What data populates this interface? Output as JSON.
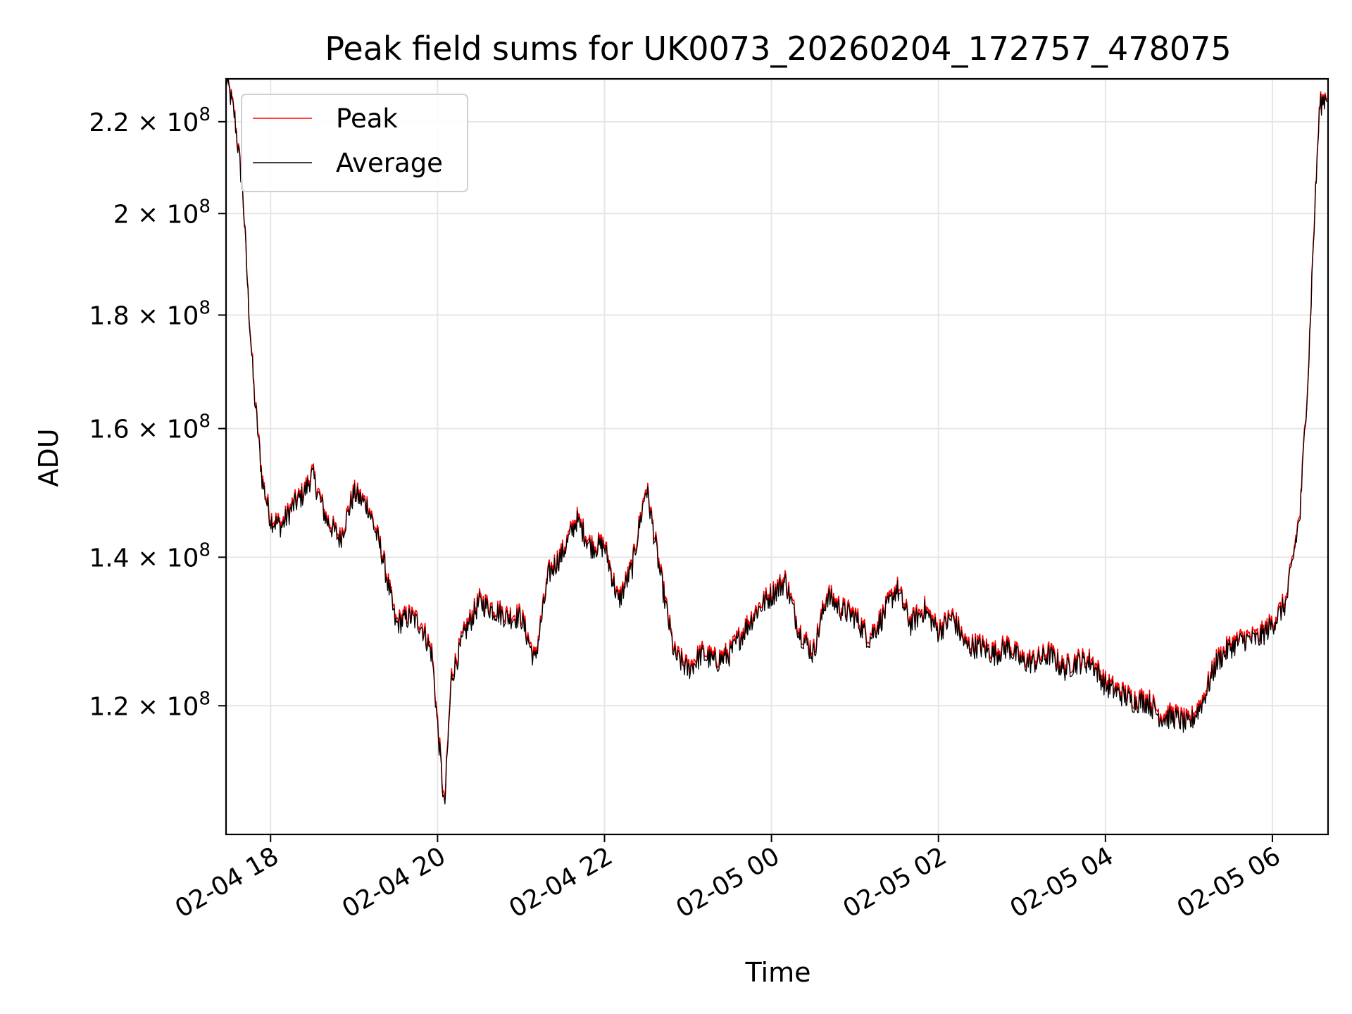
{
  "chart_data": {
    "type": "line",
    "title": "Peak field sums for UK0073_20260204_172757_478075",
    "xlabel": "Time",
    "ylabel": "ADU",
    "y_scale": "log",
    "grid": true,
    "legend_position": "top-left",
    "xlim": [
      "2026-02-04 17:28",
      "2026-02-05 06:40"
    ],
    "ylim": [
      105000000,
      230000000
    ],
    "x_ticks": [
      {
        "value": "2026-02-04 18:00",
        "label": "02-04 18"
      },
      {
        "value": "2026-02-04 20:00",
        "label": "02-04 20"
      },
      {
        "value": "2026-02-04 22:00",
        "label": "02-04 22"
      },
      {
        "value": "2026-02-05 00:00",
        "label": "02-05 00"
      },
      {
        "value": "2026-02-05 02:00",
        "label": "02-05 02"
      },
      {
        "value": "2026-02-05 04:00",
        "label": "02-05 04"
      },
      {
        "value": "2026-02-05 06:00",
        "label": "02-05 06"
      }
    ],
    "y_ticks": [
      {
        "value": 120000000,
        "mantissa": "1.2",
        "exp": "8"
      },
      {
        "value": 140000000,
        "mantissa": "1.4",
        "exp": "8"
      },
      {
        "value": 160000000,
        "mantissa": "1.6",
        "exp": "8"
      },
      {
        "value": 180000000,
        "mantissa": "1.8",
        "exp": "8"
      },
      {
        "value": 200000000,
        "mantissa": "2",
        "exp": "8"
      },
      {
        "value": 220000000,
        "mantissa": "2.2",
        "exp": "8"
      }
    ],
    "tick_multiplier": "× 10",
    "series": [
      {
        "name": "Peak",
        "color": "#ff0000",
        "x": [
          "2026-02-04 17:28",
          "2026-02-04 17:34",
          "2026-02-04 17:40",
          "2026-02-04 17:44",
          "2026-02-04 17:48",
          "2026-02-04 17:54",
          "2026-02-04 18:00",
          "2026-02-04 18:08",
          "2026-02-04 18:16",
          "2026-02-04 18:24",
          "2026-02-04 18:30",
          "2026-02-04 18:40",
          "2026-02-04 18:50",
          "2026-02-04 19:00",
          "2026-02-04 19:10",
          "2026-02-04 19:20",
          "2026-02-04 19:30",
          "2026-02-04 19:40",
          "2026-02-04 19:48",
          "2026-02-04 19:56",
          "2026-02-04 20:00",
          "2026-02-04 20:05",
          "2026-02-04 20:10",
          "2026-02-04 20:20",
          "2026-02-04 20:30",
          "2026-02-04 20:40",
          "2026-02-04 20:50",
          "2026-02-04 21:00",
          "2026-02-04 21:10",
          "2026-02-04 21:20",
          "2026-02-04 21:30",
          "2026-02-04 21:40",
          "2026-02-04 21:50",
          "2026-02-04 22:00",
          "2026-02-04 22:10",
          "2026-02-04 22:20",
          "2026-02-04 22:30",
          "2026-02-04 22:40",
          "2026-02-04 22:50",
          "2026-02-04 23:00",
          "2026-02-04 23:10",
          "2026-02-04 23:20",
          "2026-02-04 23:30",
          "2026-02-04 23:40",
          "2026-02-04 23:50",
          "2026-02-05 00:00",
          "2026-02-05 00:10",
          "2026-02-05 00:20",
          "2026-02-05 00:30",
          "2026-02-05 00:40",
          "2026-02-05 00:50",
          "2026-02-05 01:00",
          "2026-02-05 01:10",
          "2026-02-05 01:20",
          "2026-02-05 01:30",
          "2026-02-05 01:40",
          "2026-02-05 01:50",
          "2026-02-05 02:00",
          "2026-02-05 02:10",
          "2026-02-05 02:20",
          "2026-02-05 02:30",
          "2026-02-05 02:40",
          "2026-02-05 02:50",
          "2026-02-05 03:00",
          "2026-02-05 03:10",
          "2026-02-05 03:20",
          "2026-02-05 03:30",
          "2026-02-05 03:40",
          "2026-02-05 03:50",
          "2026-02-05 04:00",
          "2026-02-05 04:10",
          "2026-02-05 04:20",
          "2026-02-05 04:30",
          "2026-02-05 04:40",
          "2026-02-05 04:50",
          "2026-02-05 05:00",
          "2026-02-05 05:10",
          "2026-02-05 05:20",
          "2026-02-05 05:30",
          "2026-02-05 05:40",
          "2026-02-05 05:50",
          "2026-02-05 06:00",
          "2026-02-05 06:10",
          "2026-02-05 06:20",
          "2026-02-05 06:26",
          "2026-02-05 06:30",
          "2026-02-05 06:34",
          "2026-02-05 06:40"
        ],
        "y": [
          231000000,
          222000000,
          205000000,
          183000000,
          167000000,
          152000000,
          146000000,
          145000000,
          148000000,
          150000000,
          153000000,
          146000000,
          143000000,
          150000000,
          148000000,
          141000000,
          131000000,
          132000000,
          131000000,
          127000000,
          118000000,
          108000000,
          124000000,
          130000000,
          134000000,
          133000000,
          132000000,
          132000000,
          126000000,
          138000000,
          141000000,
          146000000,
          142000000,
          142000000,
          134000000,
          139000000,
          151000000,
          138000000,
          127000000,
          125000000,
          127000000,
          126000000,
          127000000,
          130000000,
          133000000,
          135000000,
          137000000,
          130000000,
          127000000,
          135000000,
          133000000,
          132000000,
          129000000,
          132000000,
          136000000,
          131000000,
          133000000,
          130000000,
          132000000,
          128000000,
          128000000,
          127000000,
          128000000,
          126000000,
          126000000,
          127000000,
          125000000,
          126000000,
          126000000,
          123000000,
          122000000,
          121000000,
          121000000,
          119000000,
          119000000,
          118000000,
          121000000,
          126000000,
          128000000,
          129000000,
          129000000,
          131000000,
          134000000,
          147000000,
          171000000,
          198000000,
          224000000,
          227000000
        ]
      },
      {
        "name": "Average",
        "color": "#000000",
        "x": [
          "2026-02-04 17:28",
          "2026-02-04 17:34",
          "2026-02-04 17:40",
          "2026-02-04 17:44",
          "2026-02-04 17:48",
          "2026-02-04 17:54",
          "2026-02-04 18:00",
          "2026-02-04 18:08",
          "2026-02-04 18:16",
          "2026-02-04 18:24",
          "2026-02-04 18:30",
          "2026-02-04 18:40",
          "2026-02-04 18:50",
          "2026-02-04 19:00",
          "2026-02-04 19:10",
          "2026-02-04 19:20",
          "2026-02-04 19:30",
          "2026-02-04 19:40",
          "2026-02-04 19:48",
          "2026-02-04 19:56",
          "2026-02-04 20:00",
          "2026-02-04 20:05",
          "2026-02-04 20:10",
          "2026-02-04 20:20",
          "2026-02-04 20:30",
          "2026-02-04 20:40",
          "2026-02-04 20:50",
          "2026-02-04 21:00",
          "2026-02-04 21:10",
          "2026-02-04 21:20",
          "2026-02-04 21:30",
          "2026-02-04 21:40",
          "2026-02-04 21:50",
          "2026-02-04 22:00",
          "2026-02-04 22:10",
          "2026-02-04 22:20",
          "2026-02-04 22:30",
          "2026-02-04 22:40",
          "2026-02-04 22:50",
          "2026-02-04 23:00",
          "2026-02-04 23:10",
          "2026-02-04 23:20",
          "2026-02-04 23:30",
          "2026-02-04 23:40",
          "2026-02-04 23:50",
          "2026-02-05 00:00",
          "2026-02-05 00:10",
          "2026-02-05 00:20",
          "2026-02-05 00:30",
          "2026-02-05 00:40",
          "2026-02-05 00:50",
          "2026-02-05 01:00",
          "2026-02-05 01:10",
          "2026-02-05 01:20",
          "2026-02-05 01:30",
          "2026-02-05 01:40",
          "2026-02-05 01:50",
          "2026-02-05 02:00",
          "2026-02-05 02:10",
          "2026-02-05 02:20",
          "2026-02-05 02:30",
          "2026-02-05 02:40",
          "2026-02-05 02:50",
          "2026-02-05 03:00",
          "2026-02-05 03:10",
          "2026-02-05 03:20",
          "2026-02-05 03:30",
          "2026-02-05 03:40",
          "2026-02-05 03:50",
          "2026-02-05 04:00",
          "2026-02-05 04:10",
          "2026-02-05 04:20",
          "2026-02-05 04:30",
          "2026-02-05 04:40",
          "2026-02-05 04:50",
          "2026-02-05 05:00",
          "2026-02-05 05:10",
          "2026-02-05 05:20",
          "2026-02-05 05:30",
          "2026-02-05 05:40",
          "2026-02-05 05:50",
          "2026-02-05 06:00",
          "2026-02-05 06:10",
          "2026-02-05 06:20",
          "2026-02-05 06:26",
          "2026-02-05 06:30",
          "2026-02-05 06:34",
          "2026-02-05 06:40"
        ],
        "y": [
          230500000,
          221500000,
          204500000,
          182500000,
          166500000,
          151500000,
          145500000,
          144500000,
          147500000,
          149500000,
          152500000,
          145500000,
          142500000,
          149500000,
          147500000,
          140500000,
          130500000,
          131500000,
          130500000,
          126500000,
          117500000,
          107500000,
          123500000,
          129500000,
          133500000,
          132500000,
          131500000,
          131500000,
          125500000,
          137500000,
          140500000,
          145500000,
          141500000,
          141500000,
          133500000,
          138500000,
          150500000,
          137500000,
          126500000,
          124500000,
          126500000,
          125500000,
          126500000,
          129500000,
          132500000,
          134500000,
          136500000,
          129500000,
          126500000,
          134500000,
          132500000,
          131500000,
          128500000,
          131500000,
          135500000,
          130500000,
          132500000,
          129500000,
          131500000,
          127500000,
          127500000,
          126500000,
          127500000,
          125500000,
          125500000,
          126500000,
          124500000,
          125500000,
          125500000,
          122500000,
          121500000,
          120500000,
          120500000,
          118500000,
          118500000,
          117500000,
          120500000,
          125500000,
          127500000,
          128500000,
          128500000,
          130500000,
          133500000,
          146500000,
          170500000,
          197500000,
          223500000,
          226500000
        ]
      }
    ]
  }
}
